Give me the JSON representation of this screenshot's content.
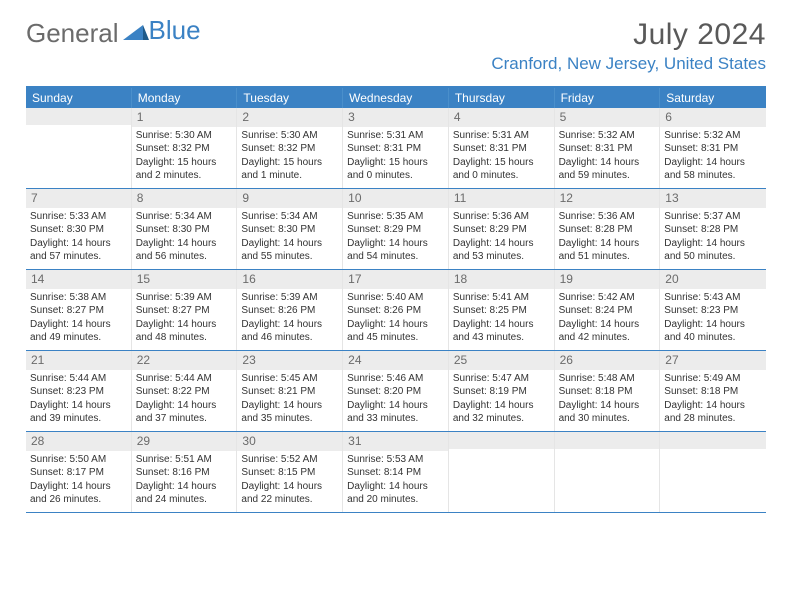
{
  "logo": {
    "word1": "General",
    "word2": "Blue"
  },
  "title": "July 2024",
  "location": "Cranford, New Jersey, United States",
  "colors": {
    "accent": "#3b82c4",
    "header_text": "#6b6b6b",
    "daynum_bg": "#ececec",
    "border": "#3b82c4"
  },
  "days_of_week": [
    "Sunday",
    "Monday",
    "Tuesday",
    "Wednesday",
    "Thursday",
    "Friday",
    "Saturday"
  ],
  "first_day_offset": 1,
  "num_days": 31,
  "days": {
    "1": {
      "sunrise": "5:30 AM",
      "sunset": "8:32 PM",
      "daylight": "15 hours and 2 minutes."
    },
    "2": {
      "sunrise": "5:30 AM",
      "sunset": "8:32 PM",
      "daylight": "15 hours and 1 minute."
    },
    "3": {
      "sunrise": "5:31 AM",
      "sunset": "8:31 PM",
      "daylight": "15 hours and 0 minutes."
    },
    "4": {
      "sunrise": "5:31 AM",
      "sunset": "8:31 PM",
      "daylight": "15 hours and 0 minutes."
    },
    "5": {
      "sunrise": "5:32 AM",
      "sunset": "8:31 PM",
      "daylight": "14 hours and 59 minutes."
    },
    "6": {
      "sunrise": "5:32 AM",
      "sunset": "8:31 PM",
      "daylight": "14 hours and 58 minutes."
    },
    "7": {
      "sunrise": "5:33 AM",
      "sunset": "8:30 PM",
      "daylight": "14 hours and 57 minutes."
    },
    "8": {
      "sunrise": "5:34 AM",
      "sunset": "8:30 PM",
      "daylight": "14 hours and 56 minutes."
    },
    "9": {
      "sunrise": "5:34 AM",
      "sunset": "8:30 PM",
      "daylight": "14 hours and 55 minutes."
    },
    "10": {
      "sunrise": "5:35 AM",
      "sunset": "8:29 PM",
      "daylight": "14 hours and 54 minutes."
    },
    "11": {
      "sunrise": "5:36 AM",
      "sunset": "8:29 PM",
      "daylight": "14 hours and 53 minutes."
    },
    "12": {
      "sunrise": "5:36 AM",
      "sunset": "8:28 PM",
      "daylight": "14 hours and 51 minutes."
    },
    "13": {
      "sunrise": "5:37 AM",
      "sunset": "8:28 PM",
      "daylight": "14 hours and 50 minutes."
    },
    "14": {
      "sunrise": "5:38 AM",
      "sunset": "8:27 PM",
      "daylight": "14 hours and 49 minutes."
    },
    "15": {
      "sunrise": "5:39 AM",
      "sunset": "8:27 PM",
      "daylight": "14 hours and 48 minutes."
    },
    "16": {
      "sunrise": "5:39 AM",
      "sunset": "8:26 PM",
      "daylight": "14 hours and 46 minutes."
    },
    "17": {
      "sunrise": "5:40 AM",
      "sunset": "8:26 PM",
      "daylight": "14 hours and 45 minutes."
    },
    "18": {
      "sunrise": "5:41 AM",
      "sunset": "8:25 PM",
      "daylight": "14 hours and 43 minutes."
    },
    "19": {
      "sunrise": "5:42 AM",
      "sunset": "8:24 PM",
      "daylight": "14 hours and 42 minutes."
    },
    "20": {
      "sunrise": "5:43 AM",
      "sunset": "8:23 PM",
      "daylight": "14 hours and 40 minutes."
    },
    "21": {
      "sunrise": "5:44 AM",
      "sunset": "8:23 PM",
      "daylight": "14 hours and 39 minutes."
    },
    "22": {
      "sunrise": "5:44 AM",
      "sunset": "8:22 PM",
      "daylight": "14 hours and 37 minutes."
    },
    "23": {
      "sunrise": "5:45 AM",
      "sunset": "8:21 PM",
      "daylight": "14 hours and 35 minutes."
    },
    "24": {
      "sunrise": "5:46 AM",
      "sunset": "8:20 PM",
      "daylight": "14 hours and 33 minutes."
    },
    "25": {
      "sunrise": "5:47 AM",
      "sunset": "8:19 PM",
      "daylight": "14 hours and 32 minutes."
    },
    "26": {
      "sunrise": "5:48 AM",
      "sunset": "8:18 PM",
      "daylight": "14 hours and 30 minutes."
    },
    "27": {
      "sunrise": "5:49 AM",
      "sunset": "8:18 PM",
      "daylight": "14 hours and 28 minutes."
    },
    "28": {
      "sunrise": "5:50 AM",
      "sunset": "8:17 PM",
      "daylight": "14 hours and 26 minutes."
    },
    "29": {
      "sunrise": "5:51 AM",
      "sunset": "8:16 PM",
      "daylight": "14 hours and 24 minutes."
    },
    "30": {
      "sunrise": "5:52 AM",
      "sunset": "8:15 PM",
      "daylight": "14 hours and 22 minutes."
    },
    "31": {
      "sunrise": "5:53 AM",
      "sunset": "8:14 PM",
      "daylight": "14 hours and 20 minutes."
    }
  },
  "labels": {
    "sunrise": "Sunrise:",
    "sunset": "Sunset:",
    "daylight": "Daylight:"
  }
}
